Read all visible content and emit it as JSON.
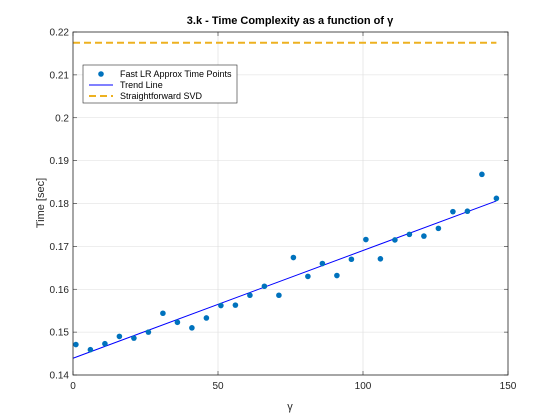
{
  "chart_data": {
    "type": "scatter",
    "title": "3.k - Time Complexity as a function of γ",
    "xlabel": "γ",
    "ylabel": "Time [sec]",
    "xlim": [
      0,
      150
    ],
    "ylim": [
      0.14,
      0.22
    ],
    "xticks": [
      "0",
      "50",
      "100",
      "150"
    ],
    "yticks": [
      "0.14",
      "0.15",
      "0.16",
      "0.17",
      "0.18",
      "0.19",
      "0.2",
      "0.21",
      "0.22"
    ],
    "grid": true,
    "legend_position": "top-left",
    "series": [
      {
        "name": "Fast LR Approx Time Points",
        "kind": "scatter",
        "color": "#0072BD",
        "x": [
          1,
          6,
          11,
          16,
          21,
          26,
          31,
          36,
          41,
          46,
          51,
          56,
          61,
          66,
          71,
          76,
          81,
          86,
          91,
          96,
          101,
          106,
          111,
          116,
          121,
          126,
          131,
          136,
          141,
          146
        ],
        "y": [
          0.1471,
          0.1459,
          0.1473,
          0.149,
          0.1486,
          0.15,
          0.1544,
          0.1523,
          0.151,
          0.1533,
          0.1562,
          0.1563,
          0.1586,
          0.1607,
          0.1586,
          0.1674,
          0.163,
          0.166,
          0.1632,
          0.167,
          0.1716,
          0.1671,
          0.1715,
          0.1728,
          0.1724,
          0.1742,
          0.1781,
          0.1782,
          0.1868,
          0.1812
        ]
      },
      {
        "name": "Trend Line",
        "kind": "line",
        "color": "#0000FF",
        "x": [
          0,
          146
        ],
        "y": [
          0.1439,
          0.1806
        ]
      },
      {
        "name": "Straightforward SVD",
        "kind": "dashed-line",
        "color": "#EDB120",
        "x": [
          0,
          146
        ],
        "y": [
          0.2175,
          0.2175
        ]
      }
    ]
  }
}
